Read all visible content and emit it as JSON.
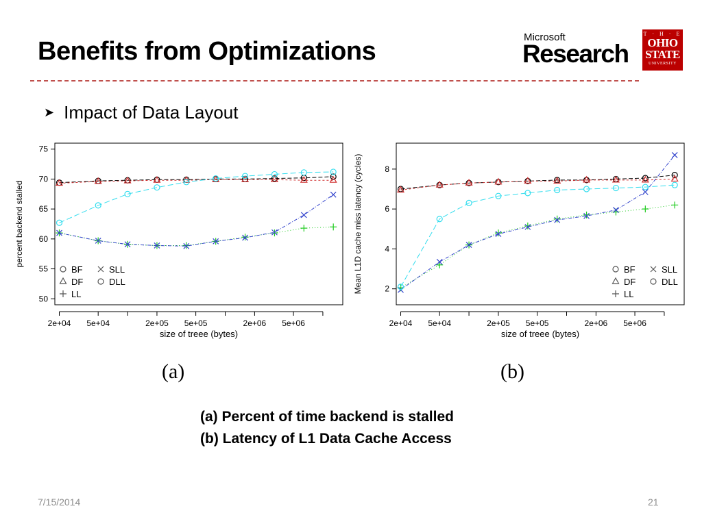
{
  "slide": {
    "title": "Benefits from Optimizations",
    "bullet": "Impact of Data Layout",
    "logos": {
      "microsoft_top": "Microsoft",
      "microsoft_main": "Research",
      "osu_top": "T · H · E",
      "osu_main1": "OHIO",
      "osu_main2": "STATE",
      "osu_bottom": "UNIVERSITY"
    },
    "panel_labels": [
      "(a)",
      "(b)"
    ],
    "captions": [
      "(a) Percent of time backend is stalled",
      "(b) Latency of L1 Data Cache Access"
    ],
    "footer_date": "7/15/2014",
    "page_number": "21",
    "accent_color": "#c0504d"
  },
  "chart_data": [
    {
      "type": "scatter",
      "xlabel": "size of treee (bytes)",
      "ylabel": "percent backend stalled",
      "xscale": "log",
      "xticks": [
        20000,
        50000,
        100000,
        200000,
        500000,
        1000000,
        2000000,
        5000000,
        10000000
      ],
      "xtick_labels": [
        "2e+04",
        "5e+04",
        "",
        "2e+05",
        "5e+05",
        "",
        "2e+06",
        "5e+06",
        ""
      ],
      "yticks": [
        50,
        55,
        60,
        65,
        70,
        75
      ],
      "ylim": [
        49,
        76
      ],
      "xlim": [
        18000,
        16000000
      ],
      "legend_position": "bottom-left",
      "x": [
        20000,
        50000,
        100000,
        200000,
        400000,
        800000,
        1600000,
        3200000,
        6400000,
        12800000
      ],
      "series": [
        {
          "name": "BF",
          "marker": "circle",
          "color": "#000000",
          "values": [
            69.4,
            69.7,
            69.8,
            69.9,
            69.9,
            70.0,
            70.0,
            70.1,
            70.2,
            70.4
          ]
        },
        {
          "name": "DF",
          "marker": "triangle",
          "color": "#d03030",
          "values": [
            69.3,
            69.6,
            69.7,
            69.8,
            69.8,
            69.9,
            69.9,
            69.9,
            69.8,
            69.8
          ]
        },
        {
          "name": "LL",
          "marker": "plus",
          "color": "#22cc22",
          "values": [
            61.0,
            59.7,
            59.1,
            58.9,
            58.9,
            59.6,
            60.3,
            61.0,
            61.8,
            62.0
          ]
        },
        {
          "name": "SLL",
          "marker": "cross",
          "color": "#3344cc",
          "values": [
            61.0,
            59.7,
            59.1,
            58.9,
            58.8,
            59.6,
            60.2,
            61.1,
            64.0,
            67.4
          ]
        },
        {
          "name": "DLL",
          "marker": "circle",
          "color": "#33ddee",
          "values": [
            62.7,
            65.6,
            67.5,
            68.6,
            69.5,
            70.1,
            70.5,
            70.8,
            71.1,
            71.2
          ]
        }
      ]
    },
    {
      "type": "scatter",
      "xlabel": "size of treee (bytes)",
      "ylabel": "Mean L1D cache miss latency (cycles)",
      "xscale": "log",
      "xticks": [
        20000,
        50000,
        100000,
        200000,
        500000,
        1000000,
        2000000,
        5000000,
        10000000
      ],
      "xtick_labels": [
        "2e+04",
        "5e+04",
        "",
        "2e+05",
        "5e+05",
        "",
        "2e+06",
        "5e+06",
        ""
      ],
      "yticks": [
        2,
        4,
        6,
        8
      ],
      "ylim": [
        1.2,
        9.3
      ],
      "xlim": [
        18000,
        16000000
      ],
      "legend_position": "bottom-right",
      "x": [
        20000,
        50000,
        100000,
        200000,
        400000,
        800000,
        1600000,
        3200000,
        6400000,
        12800000
      ],
      "series": [
        {
          "name": "BF",
          "marker": "circle",
          "color": "#000000",
          "values": [
            7.0,
            7.2,
            7.3,
            7.35,
            7.4,
            7.45,
            7.45,
            7.5,
            7.55,
            7.7
          ]
        },
        {
          "name": "DF",
          "marker": "triangle",
          "color": "#d03030",
          "values": [
            6.95,
            7.2,
            7.3,
            7.35,
            7.4,
            7.4,
            7.45,
            7.45,
            7.45,
            7.5
          ]
        },
        {
          "name": "LL",
          "marker": "plus",
          "color": "#22cc22",
          "values": [
            2.05,
            3.2,
            4.2,
            4.8,
            5.15,
            5.5,
            5.7,
            5.85,
            6.0,
            6.2
          ]
        },
        {
          "name": "SLL",
          "marker": "cross",
          "color": "#3344cc",
          "values": [
            1.95,
            3.35,
            4.2,
            4.75,
            5.1,
            5.45,
            5.65,
            5.95,
            6.85,
            8.7
          ]
        },
        {
          "name": "DLL",
          "marker": "circle",
          "color": "#33ddee",
          "values": [
            2.1,
            5.5,
            6.3,
            6.65,
            6.8,
            6.95,
            7.0,
            7.05,
            7.1,
            7.2
          ]
        }
      ]
    }
  ]
}
